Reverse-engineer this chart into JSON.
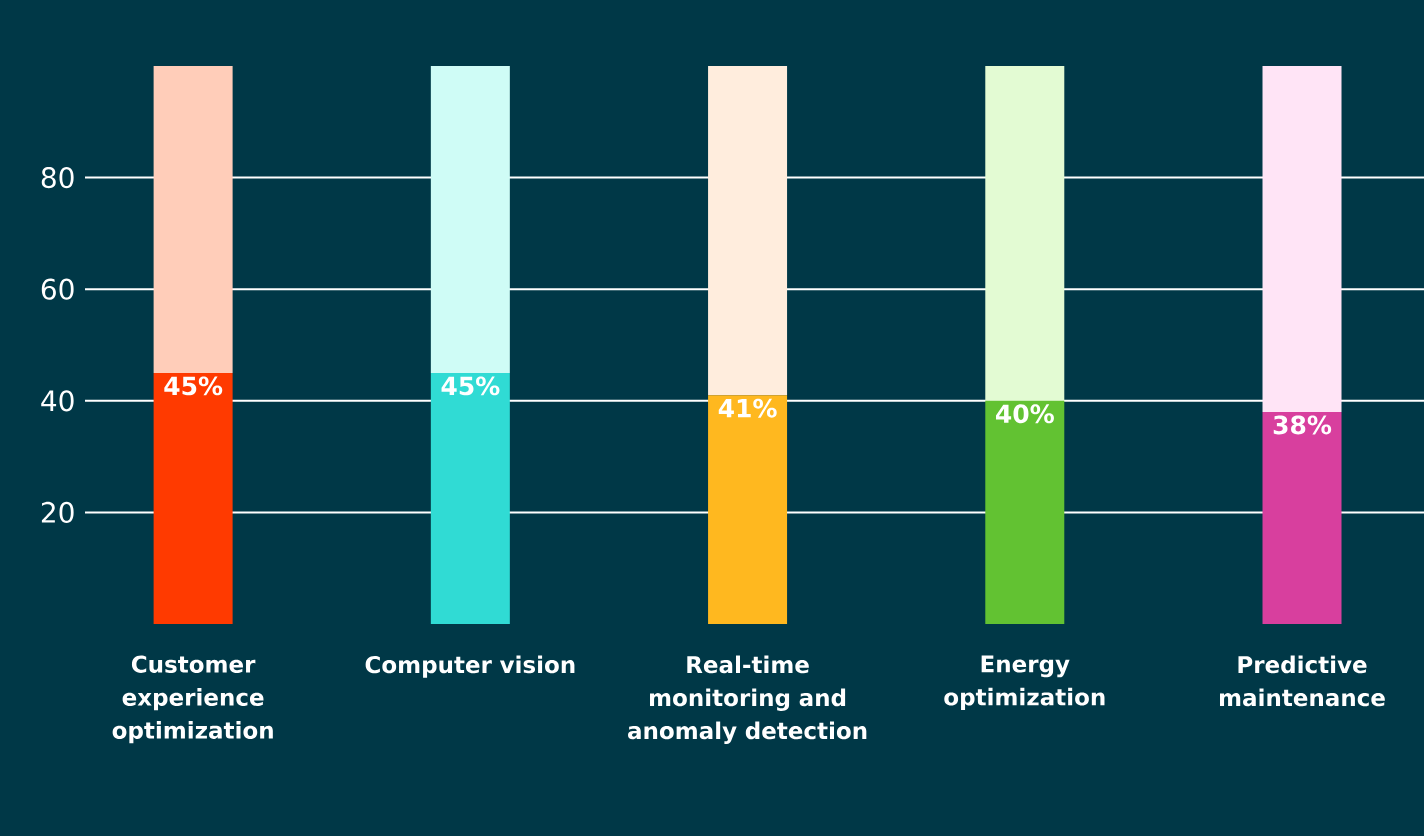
{
  "chart_data": {
    "type": "bar",
    "stacked": true,
    "categories": [
      "Customer experience optimization",
      "Computer vision",
      "Real-time monitoring and anomaly detection",
      "Energy optimization",
      "Predictive maintenance"
    ],
    "series": [
      {
        "colors": [
          "#ff3a00",
          "#30dbd4",
          "#ffb81f",
          "#62c232",
          "#d83f9e"
        ],
        "values": [
          45,
          45,
          41,
          40,
          38
        ],
        "value_labels": [
          "45%",
          "45%",
          "41%",
          "40%",
          "38%"
        ]
      },
      {
        "colors": [
          "#ffcdb9",
          "#cffcf6",
          "#ffeddd",
          "#e3fbd3",
          "#ffe4f6"
        ],
        "values": [
          55,
          55,
          59,
          60,
          62
        ]
      }
    ],
    "ylim": [
      0,
      100
    ],
    "yticks": [
      20,
      40,
      60,
      80
    ],
    "grid": "y"
  }
}
